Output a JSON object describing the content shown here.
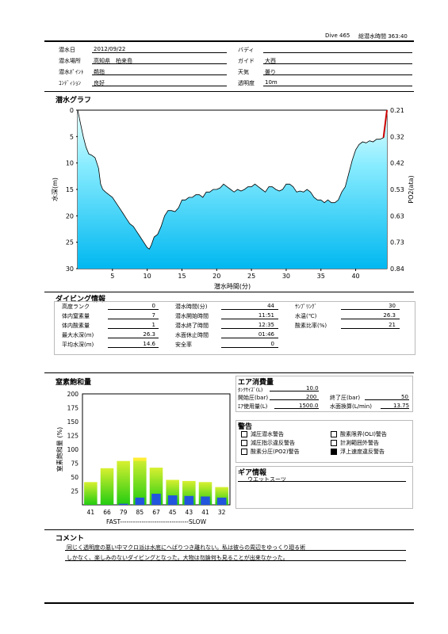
{
  "header": {
    "dive_no": "Dive 465",
    "total_time": "総潜水時間 363:40"
  },
  "info": {
    "date_label": "潜水日",
    "date": "2012/09/22",
    "place_label": "潜水場所",
    "place": "高知県　柏来島",
    "point_label": "潜水ﾎﾟｲﾝﾄ",
    "point": "鵜指",
    "condition_label": "ｺﾝﾃﾞｨｼｮﾝ",
    "condition": "良好",
    "buddy_label": "バディ",
    "buddy": "",
    "guide_label": "ガイド",
    "guide": "大西",
    "weather_label": "天気",
    "weather": "曇り",
    "visibility_label": "透明度",
    "visibility": "10m"
  },
  "dive_graph": {
    "title": "潜水グラフ",
    "chart_data": {
      "type": "area",
      "xlabel": "潜水時間(分)",
      "ylabel": "水深(m)",
      "y2label": "PO2(ata)",
      "xlim": [
        0,
        44.5
      ],
      "ylim": [
        0,
        30
      ],
      "xticks": [
        "5",
        "10",
        "15",
        "20",
        "25",
        "30",
        "35",
        "40"
      ],
      "yticks": [
        "0",
        "5",
        "10",
        "15",
        "20",
        "25",
        "30"
      ],
      "y2ticks": [
        "0.21",
        "0.32",
        "0.42",
        "0.53",
        "0.63",
        "0.73",
        "0.84"
      ],
      "x": [
        0,
        0.4,
        0.8,
        1.2,
        1.6,
        2,
        2.5,
        3,
        3.3,
        3.6,
        4,
        4.5,
        5,
        5.5,
        6,
        6.5,
        7,
        7.5,
        8,
        8.5,
        9,
        9.5,
        10,
        10.3,
        10.6,
        11,
        11.5,
        12,
        12.5,
        13,
        13.5,
        14,
        14.5,
        15,
        15.5,
        16,
        16.5,
        17,
        17.5,
        18,
        18.5,
        19,
        19.5,
        20,
        20.5,
        21,
        21.5,
        22,
        22.5,
        23,
        23.5,
        24,
        24.5,
        25,
        25.5,
        26,
        26.5,
        27,
        27.5,
        28,
        28.5,
        29,
        29.5,
        30,
        30.5,
        31,
        31.5,
        32,
        32.5,
        33,
        33.5,
        34,
        34.5,
        35,
        35.5,
        36,
        36.5,
        37,
        37.5,
        38,
        38.5,
        39,
        39.5,
        40,
        40.5,
        41,
        41.5,
        42,
        42.5,
        43,
        43.5,
        44,
        44.3,
        44.5
      ],
      "depth": [
        0,
        2.5,
        5,
        7,
        8.3,
        8.5,
        9,
        11,
        14,
        15,
        15.5,
        16,
        16.5,
        17.5,
        18.5,
        19.5,
        20.5,
        21.5,
        22,
        23,
        24,
        25,
        26,
        26.3,
        25.5,
        24,
        23.5,
        22,
        20,
        19,
        19,
        19.2,
        18.5,
        17,
        17,
        16.5,
        16.5,
        16,
        16,
        16.5,
        15.5,
        15.5,
        15,
        15,
        14.7,
        14,
        14.5,
        15,
        15.5,
        15,
        15.3,
        15,
        14.5,
        14.5,
        14,
        14.5,
        15,
        15.5,
        14.5,
        14.5,
        15,
        15.3,
        15,
        14,
        14,
        14.5,
        15.5,
        15.3,
        15.5,
        15,
        15.5,
        16.5,
        17,
        17,
        17.5,
        17,
        17.5,
        17.5,
        17,
        15.5,
        14.5,
        12,
        9.5,
        7.5,
        6.5,
        6,
        6.2,
        5.8,
        6,
        5.5,
        5.5,
        5.2,
        2,
        0
      ]
    }
  },
  "diving_info": {
    "title": "ダイビング情報",
    "col1": [
      {
        "label": "高度ランク",
        "value": "0"
      },
      {
        "label": "体内窒素量",
        "value": "7"
      },
      {
        "label": "体内酸素量",
        "value": "1"
      },
      {
        "label": "最大水深(m)",
        "value": "26.3"
      },
      {
        "label": "平均水深(m)",
        "value": "14.6"
      }
    ],
    "col2": [
      {
        "label": "潜水時間(分)",
        "value": "44"
      },
      {
        "label": "潜水開始時間",
        "value": "11:51"
      },
      {
        "label": "潜水終了時間",
        "value": "12:35"
      },
      {
        "label": "水面休止時間",
        "value": "01:46"
      },
      {
        "label": "安全率",
        "value": "0"
      }
    ],
    "col3": [
      {
        "label": "ｻﾝﾌﾟﾘﾝｸﾞ",
        "value": "30"
      },
      {
        "label": "水温(℃)",
        "value": "26.3"
      },
      {
        "label": "酸素比率(%)",
        "value": "21"
      }
    ]
  },
  "nitrogen": {
    "title": "窒素飽和量",
    "ylabel": "窒素飽和量 (%)",
    "fast_slow": "FAST--------------------------------SLOW",
    "chart_data": {
      "type": "bar",
      "ylim": [
        0,
        200
      ],
      "yticks": [
        "200",
        "175",
        "150",
        "125",
        "100",
        "75",
        "50",
        "25"
      ],
      "categories": [
        "41",
        "66",
        "79",
        "85",
        "67",
        "45",
        "43",
        "41",
        "32"
      ],
      "values": [
        41,
        66,
        79,
        85,
        67,
        45,
        43,
        41,
        32
      ],
      "blue_values": [
        0,
        0,
        2,
        13,
        20,
        17,
        16,
        15,
        13
      ],
      "colors": {
        "green": "#33dd11",
        "yellow": "#ffee33",
        "blue": "#2255dd"
      }
    }
  },
  "air": {
    "title": "エア消費量",
    "tank_label": "ﾀﾝｸｻｲｽﾞ(L)",
    "tank": "10.0",
    "start_label": "開始圧(bar)",
    "start": "200",
    "end_label": "終了圧(bar)",
    "end": "50",
    "used_label": "ｴｱ使用量(L)",
    "used": "1500.0",
    "rate_label": "水面換算(L/min)",
    "rate": "13.75"
  },
  "warnings": {
    "title": "警告",
    "items": [
      {
        "label": "減圧潜水警告",
        "checked": false
      },
      {
        "label": "酸素限界(OLI)警告",
        "checked": false
      },
      {
        "label": "減圧指示違反警告",
        "checked": false
      },
      {
        "label": "計測範囲外警告",
        "checked": false
      },
      {
        "label": "酸素分圧(PO2)警告",
        "checked": false
      },
      {
        "label": "浮上速度違反警告",
        "checked": true
      }
    ]
  },
  "gear": {
    "title": "ギア情報",
    "content": "ウエットスーツ"
  },
  "comment": {
    "title": "コメント",
    "line1": "同じく透明度の悪い中マクロ派は水底にへばりつき離れない。私は彼らの周辺をゆっくり廻る術",
    "line2": "しかなく、楽しみのないダイビングとなった。大物は勿論何も見ることが出来なかった。"
  }
}
